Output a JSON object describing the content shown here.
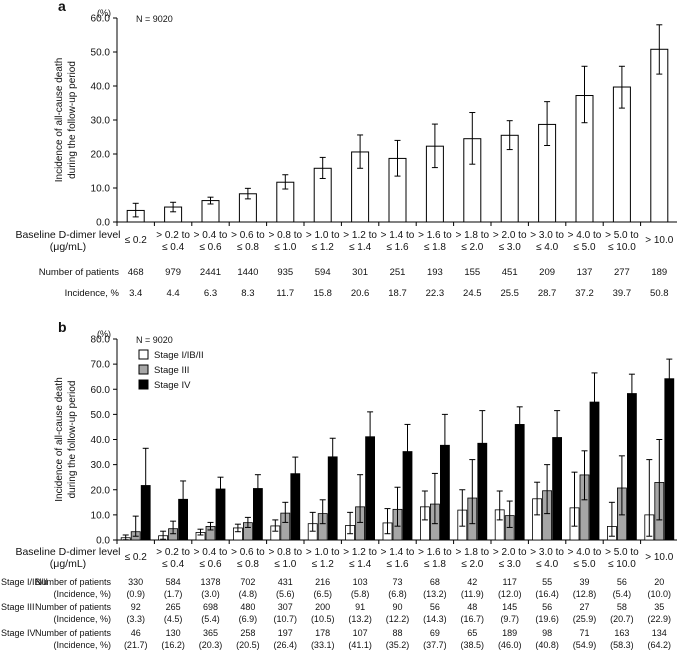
{
  "chart_data": [
    {
      "type": "bar",
      "panel_label": "a",
      "unit_label": "(%)",
      "n_label": "N = 9020",
      "ylabel": [
        "Incidence of all-cause death",
        "during the follow-up period"
      ],
      "ylim": [
        0,
        60
      ],
      "yticks": [
        "0.0",
        "10.0",
        "20.0",
        "30.0",
        "40.0",
        "50.0",
        "60.0"
      ],
      "xlabel": [
        "Baseline D-dimer level",
        "(μg/mL)"
      ],
      "categories": [
        [
          "≤ 0.2"
        ],
        [
          "> 0.2 to",
          "≤ 0.4"
        ],
        [
          "> 0.4 to",
          "≤ 0.6"
        ],
        [
          "> 0.6 to",
          "≤ 0.8"
        ],
        [
          "> 0.8 to",
          "≤ 1.0"
        ],
        [
          "> 1.0 to",
          "≤ 1.2"
        ],
        [
          "> 1.2 to",
          "≤ 1.4"
        ],
        [
          "> 1.4 to",
          "≤ 1.6"
        ],
        [
          "> 1.6 to",
          "≤ 1.8"
        ],
        [
          "> 1.8 to",
          "≤ 2.0"
        ],
        [
          "> 2.0 to",
          "≤ 3.0"
        ],
        [
          "> 3.0 to",
          "≤ 4.0"
        ],
        [
          "> 4.0 to",
          "≤ 5.0"
        ],
        [
          "> 5.0 to",
          "≤ 10.0"
        ],
        [
          "> 10.0"
        ]
      ],
      "values": [
        3.4,
        4.4,
        6.3,
        8.3,
        11.7,
        15.8,
        20.6,
        18.7,
        22.3,
        24.5,
        25.5,
        28.7,
        37.2,
        39.7,
        50.8
      ],
      "error_low": [
        1.5,
        3.0,
        5.3,
        6.8,
        9.7,
        12.8,
        15.8,
        13.5,
        16.0,
        17.0,
        21.3,
        22.5,
        29.2,
        33.5,
        43.5
      ],
      "error_high": [
        5.5,
        5.8,
        7.3,
        9.9,
        13.9,
        19.0,
        25.6,
        24.0,
        28.8,
        32.2,
        29.8,
        35.4,
        45.8,
        45.8,
        58.0
      ],
      "table_rows": [
        {
          "label": "Number of patients",
          "values": [
            "468",
            "979",
            "2441",
            "1440",
            "935",
            "594",
            "301",
            "251",
            "193",
            "155",
            "451",
            "209",
            "137",
            "277",
            "189"
          ]
        },
        {
          "label": "Incidence, %",
          "values": [
            "3.4",
            "4.4",
            "6.3",
            "8.3",
            "11.7",
            "15.8",
            "20.6",
            "18.7",
            "22.3",
            "24.5",
            "25.5",
            "28.7",
            "37.2",
            "39.7",
            "50.8"
          ]
        }
      ]
    },
    {
      "type": "bar",
      "panel_label": "b",
      "unit_label": "(%)",
      "n_label": "N = 9020",
      "ylabel": [
        "Incidence of all-cause death",
        "during the follow-up period"
      ],
      "ylim": [
        0,
        80
      ],
      "yticks": [
        "0.0",
        "10.0",
        "20.0",
        "30.0",
        "40.0",
        "50.0",
        "60.0",
        "70.0",
        "80.0"
      ],
      "xlabel": [
        "Baseline D-dimer level",
        "(μg/mL)"
      ],
      "legend": [
        "Stage I/IB/II",
        "Stage III",
        "Stage IV"
      ],
      "series_colors": [
        "#ffffff",
        "#a6a6a6",
        "#000000"
      ],
      "series": [
        {
          "name": "Stage I/IB/II",
          "values": [
            0.9,
            1.7,
            3.0,
            4.8,
            5.6,
            6.5,
            5.8,
            6.8,
            13.2,
            11.9,
            12.0,
            16.4,
            12.8,
            5.4,
            10.0
          ],
          "error_low": [
            0.1,
            0.3,
            2.0,
            3.3,
            3.5,
            3.5,
            2.5,
            2.5,
            8.0,
            5.5,
            8.0,
            10.0,
            5.5,
            1.5,
            1.5
          ],
          "error_high": [
            2.0,
            3.5,
            4.3,
            6.3,
            8.0,
            11.0,
            11.0,
            12.5,
            19.5,
            20.0,
            19.5,
            23.0,
            27.0,
            15.0,
            32.0
          ]
        },
        {
          "name": "Stage III",
          "values": [
            3.3,
            4.5,
            5.4,
            6.9,
            10.7,
            10.5,
            13.2,
            12.2,
            14.3,
            16.7,
            9.7,
            19.6,
            25.9,
            20.7,
            22.9
          ],
          "error_low": [
            1.5,
            2.5,
            4.0,
            5.0,
            7.0,
            6.5,
            7.0,
            5.5,
            6.5,
            6.5,
            5.0,
            10.5,
            16.0,
            10.0,
            8.0
          ],
          "error_high": [
            9.5,
            7.5,
            7.0,
            9.0,
            15.0,
            16.0,
            26.0,
            21.0,
            26.5,
            32.0,
            15.5,
            30.0,
            35.5,
            33.5,
            40.0
          ]
        },
        {
          "name": "Stage IV",
          "values": [
            21.7,
            16.2,
            20.3,
            20.5,
            26.4,
            33.1,
            41.1,
            35.2,
            37.7,
            38.5,
            46.0,
            40.8,
            54.9,
            58.3,
            64.2
          ],
          "error_low": [
            7.0,
            9.0,
            15.0,
            15.0,
            20.0,
            26.0,
            31.0,
            24.0,
            25.0,
            25.5,
            39.0,
            29.5,
            42.0,
            50.0,
            56.5
          ],
          "error_high": [
            36.5,
            23.5,
            25.0,
            26.0,
            33.0,
            40.5,
            51.0,
            46.0,
            50.0,
            51.5,
            53.0,
            51.5,
            66.5,
            66.0,
            72.0
          ]
        }
      ],
      "categories": [
        [
          "≤ 0.2"
        ],
        [
          "> 0.2 to",
          "≤ 0.4"
        ],
        [
          "> 0.4 to",
          "≤ 0.6"
        ],
        [
          "> 0.6 to",
          "≤ 0.8"
        ],
        [
          "> 0.8 to",
          "≤ 1.0"
        ],
        [
          "> 1.0 to",
          "≤ 1.2"
        ],
        [
          "> 1.2 to",
          "≤ 1.4"
        ],
        [
          "> 1.4 to",
          "≤ 1.6"
        ],
        [
          "> 1.6 to",
          "≤ 1.8"
        ],
        [
          "> 1.8 to",
          "≤ 2.0"
        ],
        [
          "> 2.0 to",
          "≤ 3.0"
        ],
        [
          "> 3.0 to",
          "≤ 4.0"
        ],
        [
          "> 4.0 to",
          "≤ 5.0"
        ],
        [
          "> 5.0 to",
          "≤ 10.0"
        ],
        [
          "> 10.0"
        ]
      ],
      "table_groups": [
        {
          "stage": "Stage I/IB/II",
          "row_labels": [
            "Number of patients",
            "(Incidence, %)"
          ],
          "counts": [
            "330",
            "584",
            "1378",
            "702",
            "431",
            "216",
            "103",
            "73",
            "68",
            "42",
            "117",
            "55",
            "39",
            "56",
            "20"
          ],
          "incidences": [
            "(0.9)",
            "(1.7)",
            "(3.0)",
            "(4.8)",
            "(5.6)",
            "(6.5)",
            "(5.8)",
            "(6.8)",
            "(13.2)",
            "(11.9)",
            "(12.0)",
            "(16.4)",
            "(12.8)",
            "(5.4)",
            "(10.0)"
          ]
        },
        {
          "stage": "Stage III",
          "row_labels": [
            "Number of patients",
            "(Incidence, %)"
          ],
          "counts": [
            "92",
            "265",
            "698",
            "480",
            "307",
            "200",
            "91",
            "90",
            "56",
            "48",
            "145",
            "56",
            "27",
            "58",
            "35"
          ],
          "incidences": [
            "(3.3)",
            "(4.5)",
            "(5.4)",
            "(6.9)",
            "(10.7)",
            "(10.5)",
            "(13.2)",
            "(12.2)",
            "(14.3)",
            "(16.7)",
            "(9.7)",
            "(19.6)",
            "(25.9)",
            "(20.7)",
            "(22.9)"
          ]
        },
        {
          "stage": "Stage IV",
          "row_labels": [
            "Number of patients",
            "(Incidence, %)"
          ],
          "counts": [
            "46",
            "130",
            "365",
            "258",
            "197",
            "178",
            "107",
            "88",
            "69",
            "65",
            "189",
            "98",
            "71",
            "163",
            "134"
          ],
          "incidences": [
            "(21.7)",
            "(16.2)",
            "(20.3)",
            "(20.5)",
            "(26.4)",
            "(33.1)",
            "(41.1)",
            "(35.2)",
            "(37.7)",
            "(38.5)",
            "(46.0)",
            "(40.8)",
            "(54.9)",
            "(58.3)",
            "(64.2)"
          ]
        }
      ]
    }
  ]
}
